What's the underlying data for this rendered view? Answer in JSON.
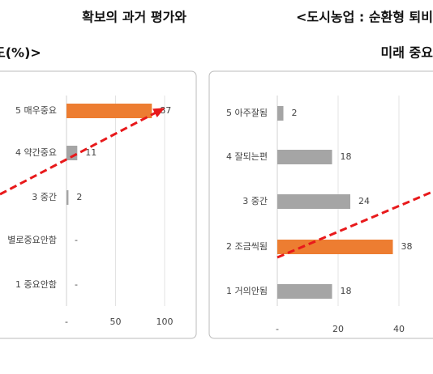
{
  "chart_data": [
    {
      "type": "bar",
      "orientation": "horizontal",
      "title": [
        "확보의 과거 평가와",
        "도(%)>"
      ],
      "categories": [
        "5 매우중요",
        "4 약간중요",
        "3 중간",
        "별로중요안함",
        "1 중요안함"
      ],
      "values": [
        87,
        11,
        2,
        null,
        null
      ],
      "value_labels": [
        "87",
        "11",
        "2",
        "-",
        "-"
      ],
      "colors": [
        "#ed7d31",
        "#a5a5a5",
        "#a5a5a5",
        "#a5a5a5",
        "#a5a5a5"
      ],
      "xlim": [
        0,
        110
      ],
      "xticks": [
        {
          "value": 0,
          "label": "-"
        },
        50,
        100
      ],
      "grid": true
    },
    {
      "type": "bar",
      "orientation": "horizontal",
      "title": [
        "<도시농업 : 순환형 퇴비",
        "미래 중요"
      ],
      "categories": [
        "5 아주잘됨",
        "4 잘되는편",
        "3 중간",
        "2 조금씩됨",
        "1 거의안됨"
      ],
      "values": [
        2,
        18,
        24,
        38,
        18
      ],
      "value_labels": [
        "2",
        "18",
        "24",
        "38",
        "18"
      ],
      "colors": [
        "#a5a5a5",
        "#a5a5a5",
        "#a5a5a5",
        "#ed7d31",
        "#a5a5a5"
      ],
      "xlim": [
        0,
        60
      ],
      "xticks": [
        {
          "value": 0,
          "label": "-"
        },
        20,
        40
      ],
      "grid": true
    }
  ]
}
